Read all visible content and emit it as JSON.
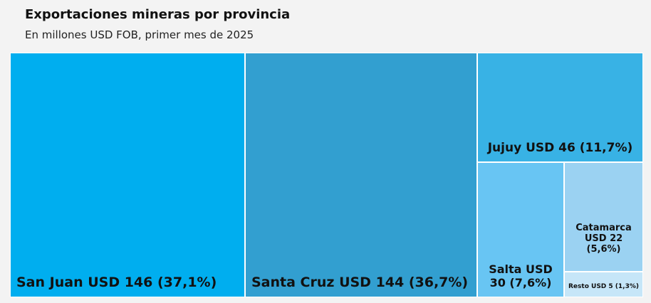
{
  "header": {
    "title": "Exportaciones mineras por provincia",
    "subtitle": "En millones USD FOB, primer mes de 2025"
  },
  "chart_data": {
    "type": "treemap",
    "title": "Exportaciones mineras por provincia",
    "subtitle": "En millones USD FOB, primer mes de 2025",
    "items": [
      {
        "name": "San Juan",
        "value": 146,
        "share": 37.1,
        "color": "#00aeef",
        "label": "San Juan USD 146 (37,1%)"
      },
      {
        "name": "Santa Cruz",
        "value": 144,
        "share": 36.7,
        "color": "#329fd0",
        "label": "Santa Cruz USD 144 (36,7%)"
      },
      {
        "name": "Jujuy",
        "value": 46,
        "share": 11.7,
        "color": "#38b2e5",
        "label": "Jujuy USD 46 (11,7%)"
      },
      {
        "name": "Salta",
        "value": 30,
        "share": 7.6,
        "color": "#68c5f3",
        "label": "Salta USD 30 (7,6%)"
      },
      {
        "name": "Catamarca",
        "value": 22,
        "share": 5.6,
        "color": "#9bd2f2",
        "label": "Catamarca USD 22 (5,6%)"
      },
      {
        "name": "Resto",
        "value": 5,
        "share": 1.3,
        "color": "#c6e6f8",
        "label": "Resto USD 5 (1,3%)"
      }
    ]
  }
}
